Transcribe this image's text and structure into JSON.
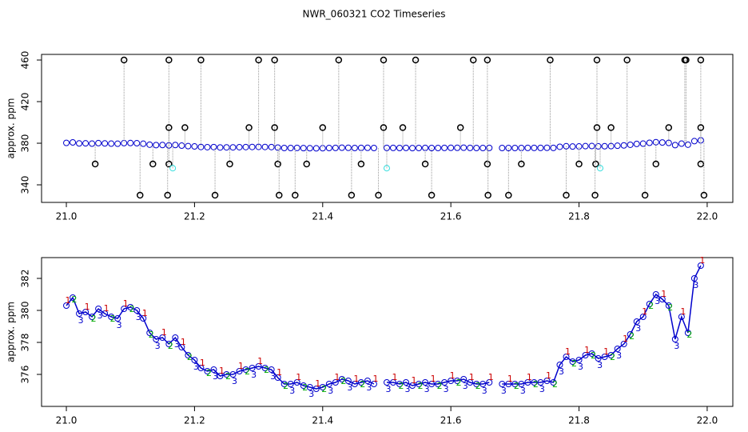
{
  "title": "NWR_060321  CO2 Timeseries",
  "chart_data": [
    {
      "type": "scatter",
      "ylabel": "approx. ppm",
      "xlim": [
        20.9613,
        22.04
      ],
      "ylim": [
        323.1,
        465.4
      ],
      "xticks": [
        {
          "value": 21,
          "label": "21.0"
        },
        21.2,
        21.4,
        21.6,
        21.8,
        {
          "value": 22,
          "label": "22.0"
        }
      ],
      "yticks": [
        340,
        380,
        420,
        460
      ],
      "series": [
        {
          "color": "#0000cc",
          "x": [
            21.0,
            21.01,
            21.02,
            21.03,
            21.04,
            21.05,
            21.06,
            21.07,
            21.08,
            21.09,
            21.1,
            21.11,
            21.12,
            21.13,
            21.14,
            21.15,
            21.16,
            21.17,
            21.18,
            21.19,
            21.2,
            21.21,
            21.22,
            21.23,
            21.24,
            21.25,
            21.26,
            21.27,
            21.28,
            21.29,
            21.3,
            21.31,
            21.32,
            21.33,
            21.34,
            21.35,
            21.36,
            21.37,
            21.38,
            21.39,
            21.4,
            21.41,
            21.42,
            21.43,
            21.44,
            21.45,
            21.46,
            21.47,
            21.48,
            21.5,
            21.51,
            21.52,
            21.53,
            21.54,
            21.55,
            21.56,
            21.57,
            21.58,
            21.59,
            21.6,
            21.61,
            21.62,
            21.63,
            21.64,
            21.65,
            21.66,
            21.68,
            21.69,
            21.7,
            21.71,
            21.72,
            21.73,
            21.74,
            21.75,
            21.76,
            21.77,
            21.78,
            21.79,
            21.8,
            21.81,
            21.82,
            21.83,
            21.84,
            21.85,
            21.86,
            21.87,
            21.88,
            21.89,
            21.9,
            21.91,
            21.92,
            21.93,
            21.94,
            21.95,
            21.96,
            21.97,
            21.98,
            21.99
          ],
          "values": [
            380.3,
            380.8,
            379.8,
            379.9,
            379.6,
            380.1,
            379.8,
            379.6,
            379.5,
            380.1,
            380.2,
            380.0,
            379.5,
            378.6,
            378.2,
            378.3,
            377.9,
            378.3,
            377.7,
            377.2,
            376.9,
            376.4,
            376.2,
            376.3,
            375.9,
            376.0,
            376.0,
            376.2,
            376.3,
            376.4,
            376.5,
            376.4,
            376.3,
            375.8,
            375.4,
            375.4,
            375.5,
            375.3,
            375.2,
            375.1,
            375.2,
            375.4,
            375.5,
            375.7,
            375.6,
            375.4,
            375.5,
            375.6,
            375.4,
            375.5,
            375.5,
            375.4,
            375.5,
            375.3,
            375.4,
            375.5,
            375.4,
            375.4,
            375.5,
            375.6,
            375.6,
            375.7,
            375.5,
            375.4,
            375.4,
            375.5,
            375.4,
            375.4,
            375.4,
            375.4,
            375.5,
            375.5,
            375.5,
            375.6,
            375.5,
            376.6,
            377.1,
            376.8,
            376.9,
            377.2,
            377.3,
            377.0,
            377.1,
            377.2,
            377.6,
            377.9,
            378.5,
            379.3,
            379.6,
            380.4,
            381.0,
            380.7,
            380.3,
            378.2,
            379.6,
            378.6,
            382.0,
            382.8
          ]
        },
        {
          "color": "#000000",
          "x": [
            21.09,
            21.16,
            21.21,
            21.3,
            21.325,
            21.425,
            21.495,
            21.545,
            21.635,
            21.657,
            21.755,
            21.828,
            21.875,
            21.965,
            21.967,
            21.99,
            21.16,
            21.185,
            21.285,
            21.325,
            21.4,
            21.495,
            21.525,
            21.615,
            21.828,
            21.85,
            21.94,
            21.99,
            21.045,
            21.135,
            21.16,
            21.255,
            21.33,
            21.375,
            21.46,
            21.56,
            21.657,
            21.71,
            21.8,
            21.826,
            21.92,
            21.99,
            21.115,
            21.158,
            21.232,
            21.332,
            21.357,
            21.445,
            21.487,
            21.57,
            21.658,
            21.69,
            21.78,
            21.825,
            21.903,
            21.995
          ],
          "values": [
            460,
            460,
            460,
            460,
            460,
            460,
            460,
            460,
            460,
            460,
            460,
            460,
            460,
            460,
            460,
            460,
            395,
            395,
            395,
            395,
            395,
            395,
            395,
            395,
            395,
            395,
            395,
            395,
            360,
            360,
            360,
            360,
            360,
            360,
            360,
            360,
            360,
            360,
            360,
            360,
            360,
            360,
            330,
            330,
            330,
            330,
            330,
            330,
            330,
            330,
            330,
            330,
            330,
            330,
            330,
            330
          ]
        },
        {
          "color": "#33dddd",
          "x": [
            21.166,
            21.5,
            21.833
          ],
          "values": [
            356,
            356,
            356
          ]
        }
      ]
    },
    {
      "type": "line",
      "ylabel": "approx. ppm",
      "xlim": [
        20.9613,
        22.04
      ],
      "ylim": [
        374.0,
        383.3
      ],
      "xticks": [
        {
          "value": 21,
          "label": "21.0"
        },
        21.2,
        21.4,
        21.6,
        21.8,
        {
          "value": 22,
          "label": "22.0"
        }
      ],
      "yticks": [
        376,
        378,
        380,
        382
      ],
      "color": "#0000cc",
      "marker_colors": {
        "1": "#cc0000",
        "2": "#00aa00",
        "3": "#0000cc"
      },
      "x": [
        21.0,
        21.01,
        21.02,
        21.03,
        21.04,
        21.05,
        21.06,
        21.07,
        21.08,
        21.09,
        21.1,
        21.11,
        21.12,
        21.13,
        21.14,
        21.15,
        21.16,
        21.17,
        21.18,
        21.19,
        21.2,
        21.21,
        21.22,
        21.23,
        21.24,
        21.25,
        21.26,
        21.27,
        21.28,
        21.29,
        21.3,
        21.31,
        21.32,
        21.33,
        21.34,
        21.35,
        21.36,
        21.37,
        21.38,
        21.39,
        21.4,
        21.41,
        21.42,
        21.43,
        21.44,
        21.45,
        21.46,
        21.47,
        21.48,
        21.49,
        21.5,
        21.51,
        21.52,
        21.53,
        21.54,
        21.55,
        21.56,
        21.57,
        21.58,
        21.59,
        21.6,
        21.61,
        21.62,
        21.63,
        21.64,
        21.65,
        21.66,
        21.67,
        21.68,
        21.69,
        21.7,
        21.71,
        21.72,
        21.73,
        21.74,
        21.75,
        21.76,
        21.77,
        21.78,
        21.79,
        21.8,
        21.81,
        21.82,
        21.83,
        21.84,
        21.85,
        21.86,
        21.87,
        21.88,
        21.89,
        21.9,
        21.91,
        21.92,
        21.93,
        21.94,
        21.95,
        21.96,
        21.97,
        21.98,
        21.99
      ],
      "values": [
        380.3,
        380.8,
        379.8,
        379.9,
        379.6,
        380.1,
        379.8,
        379.6,
        379.5,
        380.1,
        380.2,
        380.0,
        379.5,
        378.6,
        378.2,
        378.3,
        377.9,
        378.3,
        377.7,
        377.2,
        376.9,
        376.4,
        376.2,
        376.3,
        375.9,
        376.0,
        376.0,
        376.2,
        376.3,
        376.4,
        376.5,
        376.4,
        376.3,
        375.8,
        375.4,
        375.4,
        375.5,
        375.3,
        375.2,
        375.1,
        375.2,
        375.4,
        375.5,
        375.7,
        375.6,
        375.4,
        375.5,
        375.6,
        375.4,
        null,
        375.5,
        375.5,
        375.4,
        375.5,
        375.3,
        375.4,
        375.5,
        375.4,
        375.4,
        375.5,
        375.6,
        375.6,
        375.7,
        375.5,
        375.4,
        375.4,
        375.5,
        null,
        375.4,
        375.4,
        375.4,
        375.4,
        375.5,
        375.5,
        375.5,
        375.6,
        375.5,
        376.6,
        377.1,
        376.8,
        376.9,
        377.2,
        377.3,
        377.0,
        377.1,
        377.2,
        377.6,
        377.9,
        378.5,
        379.3,
        379.6,
        380.4,
        381.0,
        380.7,
        380.3,
        378.2,
        379.6,
        378.6,
        382.0,
        382.8
      ],
      "markers": [
        "1",
        "2",
        "3",
        "1",
        "2",
        "3",
        "1",
        "2",
        "3",
        "1",
        "2",
        "3",
        "1",
        "2",
        "3",
        "1",
        "2",
        "3",
        "1",
        "2",
        "3",
        "1",
        "2",
        "3",
        "1",
        "2",
        "3",
        "1",
        "2",
        "3",
        "1",
        "2",
        "3",
        "1",
        "2",
        "3",
        "1",
        "2",
        "3",
        "1",
        "2",
        "3",
        "1",
        "2",
        "3",
        "1",
        "2",
        "3",
        "1",
        "2",
        "3",
        "1",
        "2",
        "3",
        "1",
        "2",
        "3",
        "1",
        "2",
        "3",
        "1",
        "2",
        "3",
        "1",
        "2",
        "3",
        "1",
        "2",
        "3",
        "1",
        "2",
        "3",
        "1",
        "2",
        "3",
        "1",
        "2",
        "3",
        "1",
        "2",
        "3",
        "1",
        "2",
        "3",
        "1",
        "2",
        "3",
        "1",
        "2",
        "3",
        "1",
        "2",
        "3",
        "1",
        "2",
        "3",
        "1",
        "2",
        "3",
        "1"
      ]
    }
  ]
}
